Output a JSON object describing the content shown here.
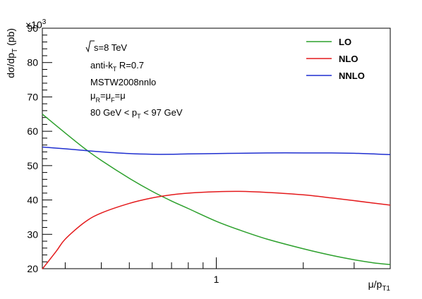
{
  "chart_data": {
    "type": "line",
    "title": "",
    "xlabel": "μ/p",
    "xlabel_sub": "T1",
    "ylabel": "dσ/dp",
    "ylabel_sub": "T",
    "ylabel_unit": " (pb)",
    "y_multiplier": "×10",
    "y_multiplier_exp": "3",
    "xscale": "log",
    "xlim": [
      0.25,
      4
    ],
    "ylim": [
      20,
      90
    ],
    "yticks": [
      20,
      30,
      40,
      50,
      60,
      70,
      80,
      90
    ],
    "ytick_labels": [
      "20",
      "30",
      "40",
      "50",
      "60",
      "70",
      "80",
      "90"
    ],
    "xtick_labels": [
      {
        "value": 1,
        "label": "1"
      }
    ],
    "grid": false,
    "legend_position": "top-right",
    "annotations": {
      "sqrt_s": "s=8 TeV",
      "jet_alg_prefix": "anti-k",
      "jet_alg_sub": "T",
      "jet_alg_suffix": " R=0.7",
      "pdf": "MSTW2008nnlo",
      "scale_mu": "μ",
      "scale_r": "R",
      "scale_f": "F",
      "scale_eq": "=",
      "pt_prefix": "80 GeV < p",
      "pt_sub": "T",
      "pt_suffix": " < 97 GeV"
    },
    "series": [
      {
        "name": "LO",
        "color": "#2ca02c",
        "x": [
          0.25,
          0.3,
          0.35,
          0.4,
          0.5,
          0.6,
          0.7,
          0.8,
          1.0,
          1.2,
          1.5,
          2.0,
          2.5,
          3.0,
          3.5,
          4.0
        ],
        "y": [
          65,
          59.5,
          55,
          51.5,
          46.3,
          42.5,
          39.7,
          37.5,
          33.8,
          31.3,
          28.6,
          25.8,
          23.9,
          22.6,
          21.7,
          21.2
        ]
      },
      {
        "name": "NLO",
        "color": "#e41a1c",
        "x": [
          0.25,
          0.28,
          0.3,
          0.35,
          0.4,
          0.5,
          0.6,
          0.7,
          0.8,
          1.0,
          1.2,
          1.5,
          2.0,
          2.5,
          3.0,
          3.5,
          4.0
        ],
        "y": [
          19.9,
          25.2,
          28.6,
          33.5,
          36.2,
          39.0,
          40.6,
          41.5,
          42.0,
          42.4,
          42.5,
          42.2,
          41.5,
          40.6,
          39.8,
          39.1,
          38.5
        ]
      },
      {
        "name": "NNLO",
        "color": "#1f2fd0",
        "x": [
          0.25,
          0.3,
          0.35,
          0.4,
          0.5,
          0.6,
          0.7,
          0.8,
          1.0,
          1.2,
          1.5,
          2.0,
          2.5,
          3.0,
          3.5,
          4.0
        ],
        "y": [
          55.4,
          54.9,
          54.4,
          54.0,
          53.5,
          53.3,
          53.3,
          53.4,
          53.5,
          53.6,
          53.7,
          53.7,
          53.7,
          53.6,
          53.4,
          53.2
        ]
      }
    ]
  }
}
